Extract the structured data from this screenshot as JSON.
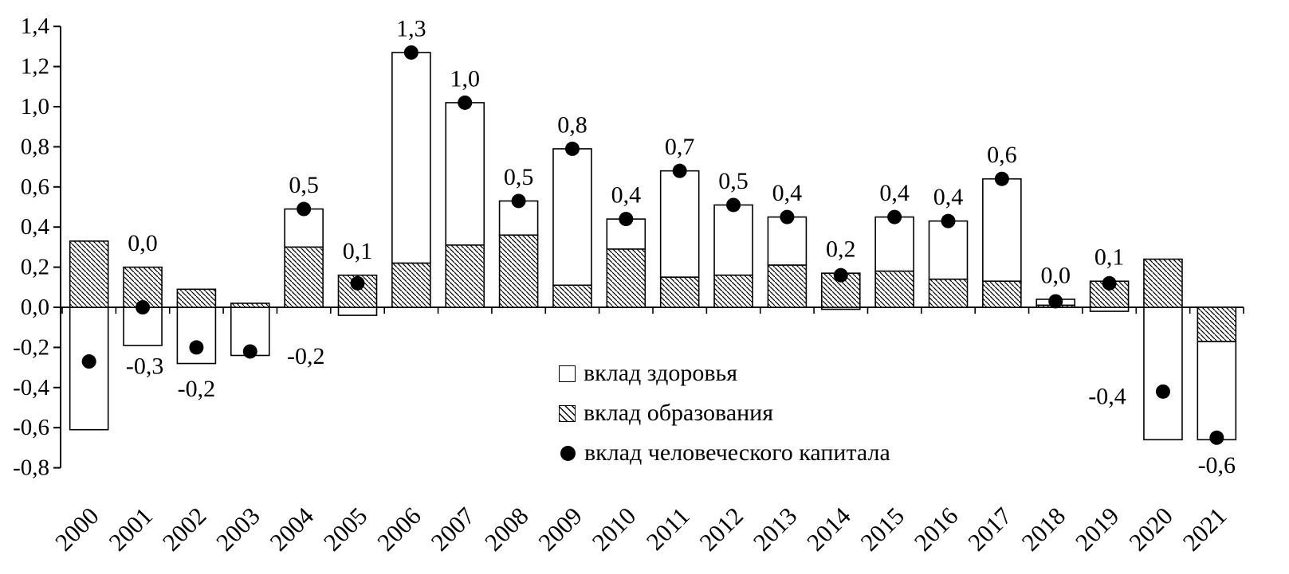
{
  "chart_data": {
    "type": "bar",
    "stacked": true,
    "title": "",
    "xlabel": "",
    "ylabel": "",
    "categories": [
      "2000",
      "2001",
      "2002",
      "2003",
      "2004",
      "2005",
      "2006",
      "2007",
      "2008",
      "2009",
      "2010",
      "2011",
      "2012",
      "2013",
      "2014",
      "2015",
      "2016",
      "2017",
      "2018",
      "2019",
      "2020",
      "2021"
    ],
    "series": [
      {
        "name": "вклад здоровья",
        "marker": "white-square",
        "values": [
          -0.61,
          -0.19,
          -0.28,
          -0.24,
          0.19,
          -0.04,
          1.05,
          0.71,
          0.17,
          0.68,
          0.15,
          0.53,
          0.35,
          0.24,
          -0.01,
          0.27,
          0.29,
          0.51,
          0.03,
          -0.02,
          -0.66,
          -0.49
        ]
      },
      {
        "name": "вклад образования",
        "marker": "hatched-square",
        "values": [
          0.33,
          0.2,
          0.09,
          0.02,
          0.3,
          0.16,
          0.22,
          0.31,
          0.36,
          0.11,
          0.29,
          0.15,
          0.16,
          0.21,
          0.17,
          0.18,
          0.14,
          0.13,
          0.01,
          0.13,
          0.24,
          -0.17
        ]
      }
    ],
    "dots": {
      "name": "вклад человеческого капитала",
      "marker": "black-dot",
      "values": [
        -0.27,
        0.0,
        -0.2,
        -0.22,
        0.49,
        0.12,
        1.27,
        1.02,
        0.53,
        0.79,
        0.44,
        0.68,
        0.51,
        0.45,
        0.16,
        0.45,
        0.43,
        0.64,
        0.03,
        0.12,
        -0.42,
        -0.65
      ]
    },
    "point_labels": {
      "values": [
        "-0,3",
        "0,0",
        "-0,2",
        "-0,2",
        "0,5",
        "0,1",
        "1,3",
        "1,0",
        "0,5",
        "0,8",
        "0,4",
        "0,7",
        "0,5",
        "0,4",
        "0,2",
        "0,4",
        "0,4",
        "0,6",
        "0,0",
        "0,1",
        "-0,4",
        "-0,6"
      ],
      "positions": [
        "right",
        "above",
        "below",
        "right",
        "above",
        "above",
        "above",
        "above",
        "above",
        "above",
        "above",
        "above",
        "above",
        "above",
        "above",
        "above",
        "above",
        "above",
        "above",
        "above",
        "left",
        "below"
      ]
    },
    "ylim": [
      -0.8,
      1.4
    ],
    "ytick_step": 0.2,
    "ytick_labels": [
      "1,4",
      "1,2",
      "1,0",
      "0,8",
      "0,6",
      "0,4",
      "0,2",
      "0,0",
      "-0,2",
      "-0,4",
      "-0,6",
      "-0,8"
    ],
    "grid": false,
    "legend_position": "center-inside",
    "legend": [
      {
        "label": "вклад здоровья",
        "marker": "white-square"
      },
      {
        "label": "вклад образования",
        "marker": "hatched-square"
      },
      {
        "label": "вклад человеческого капитала",
        "marker": "black-dot"
      }
    ]
  },
  "colors": {
    "bar_fill": "#ffffff",
    "bar_stroke": "#000000",
    "hatch": "#000000",
    "dot": "#000000",
    "text": "#000000",
    "background": "#ffffff"
  }
}
